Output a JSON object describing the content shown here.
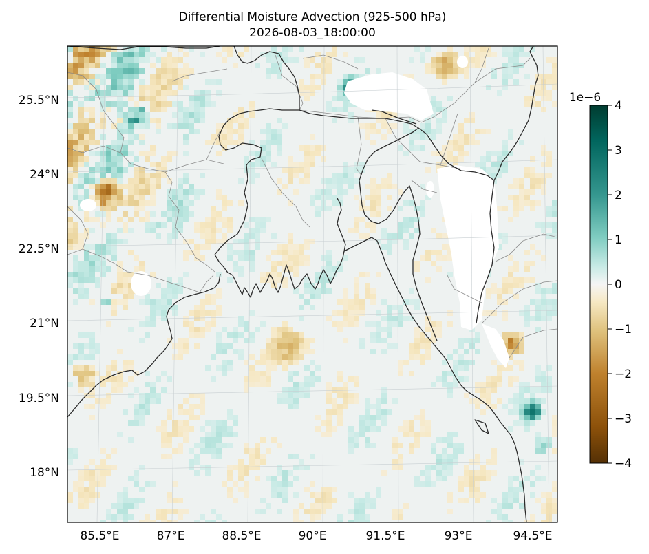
{
  "chart": {
    "title_line1": "Differential Moisture Advection (925-500 hPa)",
    "title_line2": "2026-08-03_18:00:00"
  },
  "chart_data": {
    "type": "heatmap",
    "title": "Differential Moisture Advection (925-500 hPa)",
    "subtitle": "2026-08-03_18:00:00",
    "x_tick_labels": [
      "85.5°E",
      "87°E",
      "88.5°E",
      "90°E",
      "91.5°E",
      "93°E",
      "94.5°E"
    ],
    "x_ticks": [
      85.5,
      87,
      88.5,
      90,
      91.5,
      93,
      94.5
    ],
    "y_tick_labels": [
      "25.5°N",
      "24°N",
      "22.5°N",
      "21°N",
      "19.5°N",
      "18°N"
    ],
    "y_ticks": [
      25.5,
      24,
      22.5,
      21,
      19.5,
      18
    ],
    "lon_range": [
      84.85,
      94.85
    ],
    "lat_range": [
      17.0,
      26.8
    ],
    "grid": true,
    "colorbar": {
      "colormap": "BrBG",
      "range": [
        -4,
        4
      ],
      "ticks": [
        4,
        3,
        2,
        1,
        0,
        -1,
        -2,
        -3,
        -4
      ],
      "tick_labels": [
        "4",
        "3",
        "2",
        "1",
        "0",
        "−1",
        "−2",
        "−3",
        "−4"
      ],
      "scale_label": "1e−6",
      "placement": "right"
    }
  }
}
